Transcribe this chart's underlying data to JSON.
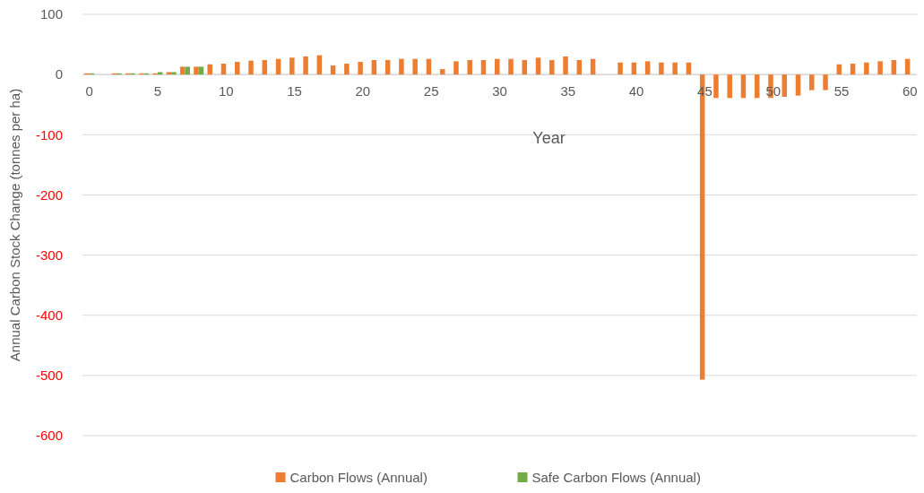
{
  "chart_data": {
    "type": "bar",
    "xlabel": "Year",
    "ylabel": "Annual Carbon Stock Change (tonnes per ha)",
    "xlim": [
      -0.5,
      60.5
    ],
    "xticks": [
      0,
      5,
      10,
      15,
      20,
      25,
      30,
      35,
      40,
      45,
      50,
      55,
      60
    ],
    "ylim": [
      -600,
      100
    ],
    "yticks": [
      -600,
      -500,
      -400,
      -300,
      -200,
      -100,
      0,
      100
    ],
    "grid": "y",
    "legend": "bottom",
    "series": [
      {
        "name": "Carbon Flows (Annual)",
        "color": "#ed7d31",
        "x": [
          0,
          2,
          3,
          4,
          5,
          6,
          7,
          8,
          9,
          10,
          11,
          12,
          13,
          14,
          15,
          16,
          17,
          18,
          19,
          20,
          21,
          22,
          23,
          24,
          25,
          26,
          27,
          28,
          29,
          30,
          31,
          32,
          33,
          34,
          35,
          36,
          37,
          39,
          40,
          41,
          42,
          43,
          44,
          45,
          46,
          47,
          48,
          49,
          50,
          51,
          52,
          53,
          54,
          55,
          56,
          57,
          58,
          59,
          60
        ],
        "values": [
          2,
          2,
          2,
          2,
          2,
          4,
          13,
          13,
          17,
          18,
          21,
          23,
          24,
          26,
          28,
          30,
          32,
          15,
          18,
          21,
          24,
          24,
          26,
          26,
          26,
          9,
          22,
          24,
          24,
          26,
          26,
          24,
          28,
          24,
          30,
          24,
          26,
          20,
          20,
          22,
          20,
          20,
          20,
          -507,
          -39,
          -39,
          -39,
          -39,
          -39,
          -37,
          -35,
          -26,
          -26,
          17,
          18,
          20,
          22,
          24,
          26
        ]
      },
      {
        "name": "Safe Carbon Flows (Annual)",
        "color": "#70ad47",
        "x": [
          0,
          2,
          3,
          4,
          5,
          6,
          7,
          8
        ],
        "values": [
          2,
          2,
          2,
          2,
          4,
          4,
          13,
          13
        ]
      }
    ]
  }
}
